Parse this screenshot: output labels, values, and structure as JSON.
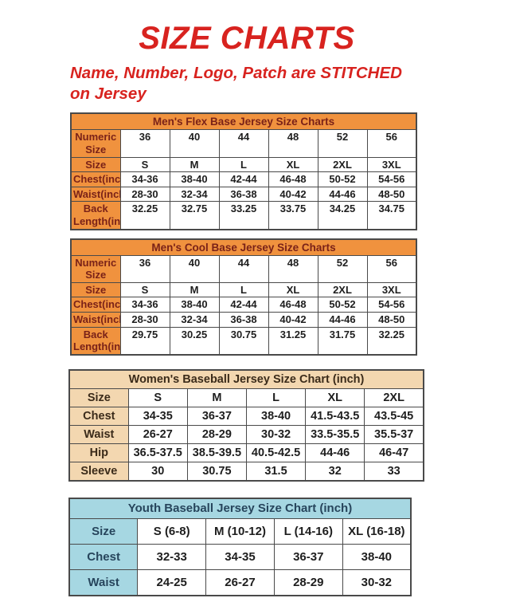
{
  "page": {
    "title": "SIZE CHARTS",
    "subtitle_line1": "Name, Number, Logo, Patch are STITCHED",
    "subtitle_line2": "on Jersey",
    "accent_color": "#D8231F"
  },
  "tables": [
    {
      "id": "mens-flex-base",
      "variant": "mens",
      "title": "Men's Flex Base Jersey Size Charts",
      "theme": {
        "header_bg": "#F0923E",
        "header_text": "#7A2218",
        "cell_text": "#1E1E1E",
        "border": "#4A4A4A"
      },
      "rows": [
        {
          "label": "Numeric Size",
          "values": [
            "36",
            "40",
            "44",
            "48",
            "52",
            "56"
          ]
        },
        {
          "label": "Size",
          "values": [
            "S",
            "M",
            "L",
            "XL",
            "2XL",
            "3XL"
          ]
        },
        {
          "label": "Chest(inch)",
          "values": [
            "34-36",
            "38-40",
            "42-44",
            "46-48",
            "50-52",
            "54-56"
          ]
        },
        {
          "label": "Waist(inch)",
          "values": [
            "28-30",
            "32-34",
            "36-38",
            "40-42",
            "44-46",
            "48-50"
          ]
        },
        {
          "label": "Back Length(inch)",
          "values": [
            "32.25",
            "32.75",
            "33.25",
            "33.75",
            "34.25",
            "34.75"
          ]
        }
      ]
    },
    {
      "id": "mens-cool-base",
      "variant": "mens",
      "title": "Men's Cool Base Jersey Size Charts",
      "theme": {
        "header_bg": "#F0923E",
        "header_text": "#7A2218",
        "cell_text": "#1E1E1E",
        "border": "#4A4A4A"
      },
      "rows": [
        {
          "label": "Numeric Size",
          "values": [
            "36",
            "40",
            "44",
            "48",
            "52",
            "56"
          ]
        },
        {
          "label": "Size",
          "values": [
            "S",
            "M",
            "L",
            "XL",
            "2XL",
            "3XL"
          ]
        },
        {
          "label": "Chest(inch)",
          "values": [
            "34-36",
            "38-40",
            "42-44",
            "46-48",
            "50-52",
            "54-56"
          ]
        },
        {
          "label": "Waist(inch)",
          "values": [
            "28-30",
            "32-34",
            "36-38",
            "40-42",
            "44-46",
            "48-50"
          ]
        },
        {
          "label": "Back Length(inch)",
          "values": [
            "29.75",
            "30.25",
            "30.75",
            "31.25",
            "31.75",
            "32.25"
          ]
        }
      ]
    },
    {
      "id": "womens-baseball",
      "variant": "womens",
      "title": "Women's Baseball Jersey Size Chart (inch)",
      "theme": {
        "header_bg": "#F3D7B0",
        "header_text": "#3B2B1A",
        "cell_text": "#1E1E1E",
        "border": "#4A4A4A"
      },
      "rows": [
        {
          "label": "Size",
          "values": [
            "S",
            "M",
            "L",
            "XL",
            "2XL"
          ]
        },
        {
          "label": "Chest",
          "values": [
            "34-35",
            "36-37",
            "38-40",
            "41.5-43.5",
            "43.5-45"
          ]
        },
        {
          "label": "Waist",
          "values": [
            "26-27",
            "28-29",
            "30-32",
            "33.5-35.5",
            "35.5-37"
          ]
        },
        {
          "label": "Hip",
          "values": [
            "36.5-37.5",
            "38.5-39.5",
            "40.5-42.5",
            "44-46",
            "46-47"
          ]
        },
        {
          "label": "Sleeve",
          "values": [
            "30",
            "30.75",
            "31.5",
            "32",
            "33"
          ]
        }
      ]
    },
    {
      "id": "youth-baseball",
      "variant": "youth",
      "title": "Youth Baseball Jersey Size Chart (inch)",
      "theme": {
        "header_bg": "#A6D7E2",
        "header_text": "#27455C",
        "cell_text": "#1E1E1E",
        "border": "#4A4A4A"
      },
      "rows": [
        {
          "label": "Size",
          "values": [
            "S (6-8)",
            "M (10-12)",
            "L (14-16)",
            "XL (16-18)"
          ]
        },
        {
          "label": "Chest",
          "values": [
            "32-33",
            "34-35",
            "36-37",
            "38-40"
          ]
        },
        {
          "label": "Waist",
          "values": [
            "24-25",
            "26-27",
            "28-29",
            "30-32"
          ]
        }
      ]
    }
  ]
}
